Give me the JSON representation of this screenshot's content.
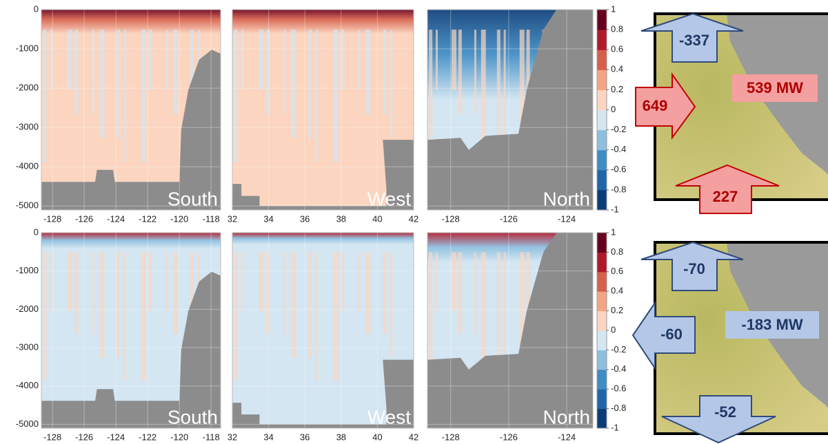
{
  "rows": [
    {
      "panels": [
        {
          "label": "South",
          "xlim": [
            -128.7,
            -117.4
          ],
          "xticks": [
            -128,
            -126,
            -124,
            -122,
            -120,
            -118
          ],
          "ylim": [
            -5100,
            0
          ],
          "yticks": [
            0,
            -1000,
            -2000,
            -3000,
            -4000,
            -5000
          ]
        },
        {
          "label": "West",
          "xlim": [
            32,
            42
          ],
          "xticks": [
            32,
            34,
            36,
            38,
            40,
            42
          ],
          "ylim": [
            -5100,
            0
          ],
          "yticks": [
            0,
            -1000,
            -2000,
            -3000,
            -4000,
            -5000
          ]
        },
        {
          "label": "North",
          "xlim": [
            -128.8,
            -123.1
          ],
          "xticks": [
            -128,
            -126,
            -124
          ],
          "ylim": [
            -5100,
            0
          ],
          "yticks": [
            0,
            -1000,
            -2000,
            -3000,
            -4000,
            -5000
          ]
        }
      ],
      "colorbar": {
        "ticks": [
          1,
          0.8,
          0.6,
          0.4,
          0.2,
          0,
          -0.2,
          -0.4,
          -0.6,
          -0.8,
          -1
        ],
        "colors": [
          "#0b3c78",
          "#1f65a8",
          "#3f8cc4",
          "#8dbfdf",
          "#d3e6f2",
          "#fcd5c0",
          "#f4a582",
          "#d6604d",
          "#b2182b",
          "#67001f"
        ]
      },
      "map": {
        "total": "539 MW",
        "arrows": [
          {
            "value": -337
          },
          {
            "value": 649
          },
          {
            "value": 227
          }
        ]
      }
    },
    {
      "panels": [
        {
          "label": "South",
          "xlim": [
            -128.7,
            -117.4
          ],
          "xticks": [
            -128,
            -126,
            -124,
            -122,
            -120,
            -118
          ],
          "ylim": [
            -5100,
            0
          ],
          "yticks": [
            0,
            -1000,
            -2000,
            -3000,
            -4000,
            -5000
          ]
        },
        {
          "label": "West",
          "xlim": [
            32,
            42
          ],
          "xticks": [
            32,
            34,
            36,
            38,
            40,
            42
          ],
          "ylim": [
            -5100,
            0
          ],
          "yticks": [
            0,
            -1000,
            -2000,
            -3000,
            -4000,
            -5000
          ]
        },
        {
          "label": "North",
          "xlim": [
            -128.8,
            -123.1
          ],
          "xticks": [
            -128,
            -126,
            -124
          ],
          "ylim": [
            -5100,
            0
          ],
          "yticks": [
            0,
            -1000,
            -2000,
            -3000,
            -4000,
            -5000
          ]
        }
      ],
      "colorbar": {
        "ticks": [
          1,
          0.8,
          0.6,
          0.4,
          0.2,
          0,
          -0.2,
          -0.4,
          -0.6,
          -0.8,
          -1
        ],
        "colors": [
          "#0b3c78",
          "#1f65a8",
          "#3f8cc4",
          "#8dbfdf",
          "#d3e6f2",
          "#fcd5c0",
          "#f4a582",
          "#d6604d",
          "#b2182b",
          "#67001f"
        ]
      },
      "map": {
        "total": "-183 MW",
        "arrows": [
          {
            "value": -70
          },
          {
            "value": -60
          },
          {
            "value": -52
          }
        ]
      }
    }
  ]
}
